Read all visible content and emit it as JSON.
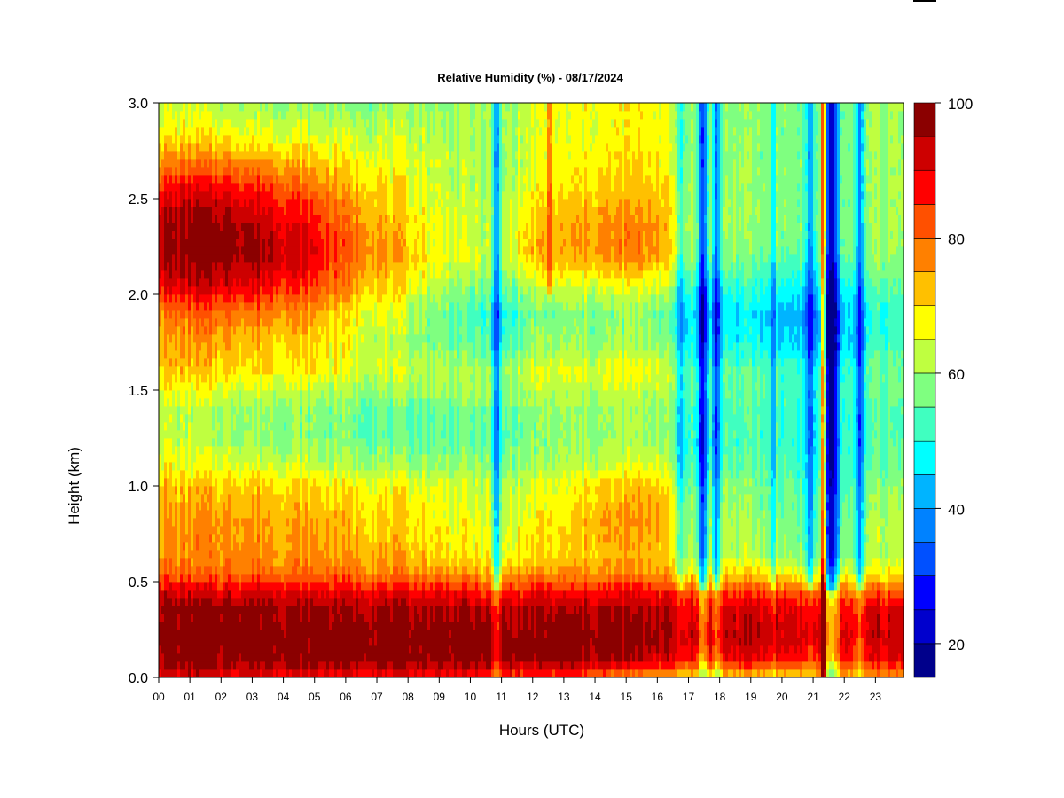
{
  "chart_data": {
    "type": "heatmap",
    "title": "Relative Humidity (%) - 08/17/2024",
    "xlabel": "Hours (UTC)",
    "ylabel": "Height (km)",
    "x_ticks": [
      "00",
      "01",
      "02",
      "03",
      "04",
      "05",
      "06",
      "07",
      "08",
      "09",
      "10",
      "11",
      "12",
      "13",
      "14",
      "15",
      "16",
      "17",
      "18",
      "19",
      "20",
      "21",
      "22",
      "23"
    ],
    "y_ticks": [
      "0.0",
      "0.5",
      "1.0",
      "1.5",
      "2.0",
      "2.5",
      "3.0"
    ],
    "y_tick_values": [
      0.0,
      0.5,
      1.0,
      1.5,
      2.0,
      2.5,
      3.0
    ],
    "xlim": [
      0,
      23.9
    ],
    "ylim": [
      0,
      3.0
    ],
    "colorbar": {
      "ticks": [
        "20",
        "40",
        "60",
        "80",
        "100"
      ],
      "tick_values": [
        20,
        40,
        60,
        80,
        100
      ],
      "range": [
        15,
        100
      ],
      "levels": [
        15,
        20,
        25,
        30,
        35,
        40,
        45,
        50,
        55,
        60,
        65,
        70,
        75,
        80,
        85,
        90,
        95,
        100
      ],
      "colors": [
        "#00008b",
        "#0000cd",
        "#0000ff",
        "#0050ff",
        "#0082ff",
        "#00b4ff",
        "#00ffff",
        "#40ffc0",
        "#7fff80",
        "#bfff40",
        "#ffff00",
        "#ffc000",
        "#ff8000",
        "#ff5000",
        "#ff0000",
        "#cd0000",
        "#8b0000"
      ]
    },
    "height_profile": {
      "heights_km": [
        0.0,
        0.05,
        0.1,
        0.2,
        0.35,
        0.45,
        0.55,
        0.65,
        0.8,
        1.0,
        1.1,
        1.25,
        1.4,
        1.5,
        1.6,
        1.75,
        1.9,
        2.05,
        2.2,
        2.35,
        2.5,
        2.65,
        2.8,
        3.0
      ]
    },
    "columns": [
      {
        "hour": 0,
        "rh": [
          90,
          94,
          97,
          99,
          98,
          92,
          80,
          76,
          75,
          73,
          68,
          64,
          63,
          67,
          72,
          74,
          78,
          90,
          96,
          95,
          90,
          80,
          70,
          63
        ]
      },
      {
        "hour": 1,
        "rh": [
          90,
          95,
          98,
          99,
          98,
          91,
          80,
          77,
          76,
          72,
          66,
          62,
          62,
          66,
          72,
          75,
          80,
          92,
          98,
          97,
          92,
          82,
          70,
          62
        ]
      },
      {
        "hour": 2,
        "rh": [
          90,
          95,
          98,
          99,
          98,
          91,
          80,
          77,
          76,
          72,
          66,
          61,
          61,
          65,
          71,
          74,
          80,
          92,
          99,
          98,
          92,
          82,
          70,
          61
        ]
      },
      {
        "hour": 3,
        "rh": [
          89,
          94,
          98,
          99,
          98,
          91,
          80,
          77,
          76,
          72,
          65,
          60,
          60,
          64,
          70,
          73,
          79,
          90,
          97,
          96,
          90,
          80,
          68,
          60
        ]
      },
      {
        "hour": 4,
        "rh": [
          89,
          94,
          98,
          99,
          97,
          90,
          79,
          76,
          75,
          71,
          64,
          59,
          59,
          63,
          69,
          72,
          77,
          88,
          94,
          92,
          86,
          77,
          67,
          59
        ]
      },
      {
        "hour": 5,
        "rh": [
          89,
          94,
          98,
          99,
          97,
          90,
          79,
          76,
          74,
          70,
          63,
          58,
          58,
          62,
          68,
          70,
          74,
          84,
          89,
          87,
          82,
          74,
          66,
          58
        ]
      },
      {
        "hour": 6,
        "rh": [
          89,
          94,
          98,
          99,
          97,
          90,
          79,
          75,
          73,
          69,
          62,
          57,
          57,
          61,
          66,
          67,
          70,
          78,
          82,
          80,
          76,
          71,
          65,
          58
        ]
      },
      {
        "hour": 7,
        "rh": [
          88,
          94,
          98,
          99,
          97,
          89,
          78,
          74,
          72,
          68,
          61,
          56,
          56,
          60,
          64,
          63,
          66,
          72,
          77,
          75,
          72,
          68,
          64,
          58
        ]
      },
      {
        "hour": 8,
        "rh": [
          88,
          93,
          98,
          99,
          96,
          89,
          78,
          73,
          71,
          67,
          60,
          55,
          55,
          60,
          63,
          60,
          62,
          68,
          72,
          70,
          68,
          66,
          63,
          59
        ]
      },
      {
        "hour": 9,
        "rh": [
          87,
          93,
          98,
          99,
          96,
          88,
          76,
          70,
          68,
          65,
          60,
          55,
          56,
          60,
          62,
          57,
          57,
          62,
          67,
          66,
          64,
          63,
          62,
          59
        ]
      },
      {
        "hour": 10,
        "rh": [
          86,
          93,
          98,
          99,
          95,
          87,
          74,
          68,
          66,
          63,
          59,
          55,
          56,
          60,
          61,
          54,
          53,
          58,
          64,
          63,
          62,
          61,
          61,
          60
        ]
      },
      {
        "hour": 11,
        "rh": [
          85,
          92,
          97,
          98,
          94,
          86,
          73,
          66,
          64,
          62,
          58,
          55,
          56,
          59,
          59,
          52,
          50,
          56,
          62,
          62,
          61,
          60,
          60,
          60
        ]
      },
      {
        "hour": 12,
        "rh": [
          84,
          92,
          97,
          98,
          95,
          88,
          76,
          70,
          68,
          65,
          60,
          57,
          58,
          62,
          64,
          58,
          56,
          63,
          72,
          71,
          68,
          65,
          64,
          64
        ]
      },
      {
        "hour": 13,
        "rh": [
          82,
          91,
          97,
          98,
          95,
          87,
          75,
          70,
          69,
          66,
          61,
          58,
          59,
          62,
          65,
          59,
          57,
          64,
          73,
          73,
          70,
          67,
          65,
          65
        ]
      },
      {
        "hour": 14,
        "rh": [
          80,
          90,
          96,
          98,
          95,
          87,
          75,
          72,
          74,
          70,
          63,
          59,
          59,
          62,
          65,
          59,
          57,
          65,
          76,
          76,
          72,
          69,
          67,
          67
        ]
      },
      {
        "hour": 15,
        "rh": [
          76,
          87,
          94,
          97,
          95,
          88,
          76,
          73,
          75,
          72,
          65,
          60,
          60,
          63,
          66,
          60,
          58,
          66,
          77,
          77,
          73,
          70,
          68,
          68
        ]
      },
      {
        "hour": 16,
        "rh": [
          74,
          85,
          93,
          97,
          95,
          88,
          76,
          73,
          76,
          73,
          66,
          60,
          60,
          63,
          66,
          60,
          58,
          66,
          77,
          77,
          73,
          70,
          68,
          68
        ]
      },
      {
        "hour": 17,
        "rh": [
          70,
          80,
          88,
          93,
          91,
          83,
          68,
          62,
          60,
          57,
          54,
          52,
          53,
          56,
          55,
          49,
          47,
          53,
          60,
          62,
          61,
          60,
          59,
          59
        ]
      },
      {
        "hour": 18,
        "rh": [
          70,
          81,
          89,
          94,
          92,
          84,
          70,
          63,
          64,
          60,
          56,
          53,
          53,
          56,
          55,
          49,
          47,
          52,
          59,
          61,
          60,
          59,
          59,
          59
        ]
      },
      {
        "hour": 19,
        "rh": [
          70,
          81,
          89,
          94,
          92,
          84,
          69,
          61,
          59,
          57,
          55,
          53,
          53,
          55,
          54,
          48,
          46,
          51,
          57,
          59,
          59,
          59,
          58,
          58
        ]
      },
      {
        "hour": 20,
        "rh": [
          70,
          80,
          88,
          93,
          91,
          83,
          67,
          60,
          58,
          56,
          54,
          52,
          52,
          54,
          53,
          46,
          44,
          50,
          56,
          58,
          58,
          58,
          58,
          58
        ]
      },
      {
        "hour": 21,
        "rh": [
          72,
          80,
          87,
          92,
          90,
          82,
          65,
          58,
          56,
          54,
          52,
          50,
          50,
          52,
          50,
          43,
          41,
          48,
          55,
          57,
          57,
          57,
          57,
          57
        ]
      },
      {
        "hour": 22,
        "rh": [
          74,
          82,
          88,
          91,
          89,
          80,
          66,
          59,
          57,
          55,
          53,
          52,
          52,
          53,
          52,
          46,
          45,
          51,
          57,
          58,
          58,
          58,
          58,
          58
        ]
      },
      {
        "hour": 23,
        "rh": [
          75,
          83,
          89,
          93,
          91,
          82,
          68,
          62,
          62,
          59,
          56,
          54,
          54,
          56,
          56,
          52,
          51,
          55,
          59,
          60,
          60,
          60,
          60,
          60
        ]
      }
    ],
    "dry_streaks": [
      {
        "hour": 10.85,
        "width_h": 0.18,
        "rh_offset": -24,
        "z_min": 0.0,
        "z_max": 3.0
      },
      {
        "hour": 12.55,
        "width_h": 0.15,
        "rh_offset": 12,
        "z_min": 2.0,
        "z_max": 3.0
      },
      {
        "hour": 16.75,
        "width_h": 0.15,
        "rh_offset": -14,
        "z_min": 0.0,
        "z_max": 3.0
      },
      {
        "hour": 17.45,
        "width_h": 0.22,
        "rh_offset": -30,
        "z_min": 0.0,
        "z_max": 3.0
      },
      {
        "hour": 17.9,
        "width_h": 0.18,
        "rh_offset": -26,
        "z_min": 0.0,
        "z_max": 3.0
      },
      {
        "hour": 19.7,
        "width_h": 0.12,
        "rh_offset": -12,
        "z_min": 0.0,
        "z_max": 3.0
      },
      {
        "hour": 20.9,
        "width_h": 0.2,
        "rh_offset": -18,
        "z_min": 0.0,
        "z_max": 3.0
      },
      {
        "hour": 21.33,
        "width_h": 0.08,
        "rh_offset": 45,
        "z_min": 0.0,
        "z_max": 3.0
      },
      {
        "hour": 21.6,
        "width_h": 0.3,
        "rh_offset": -38,
        "z_min": 0.0,
        "z_max": 3.0
      },
      {
        "hour": 22.5,
        "width_h": 0.2,
        "rh_offset": -24,
        "z_min": 0.0,
        "z_max": 3.0
      }
    ]
  }
}
